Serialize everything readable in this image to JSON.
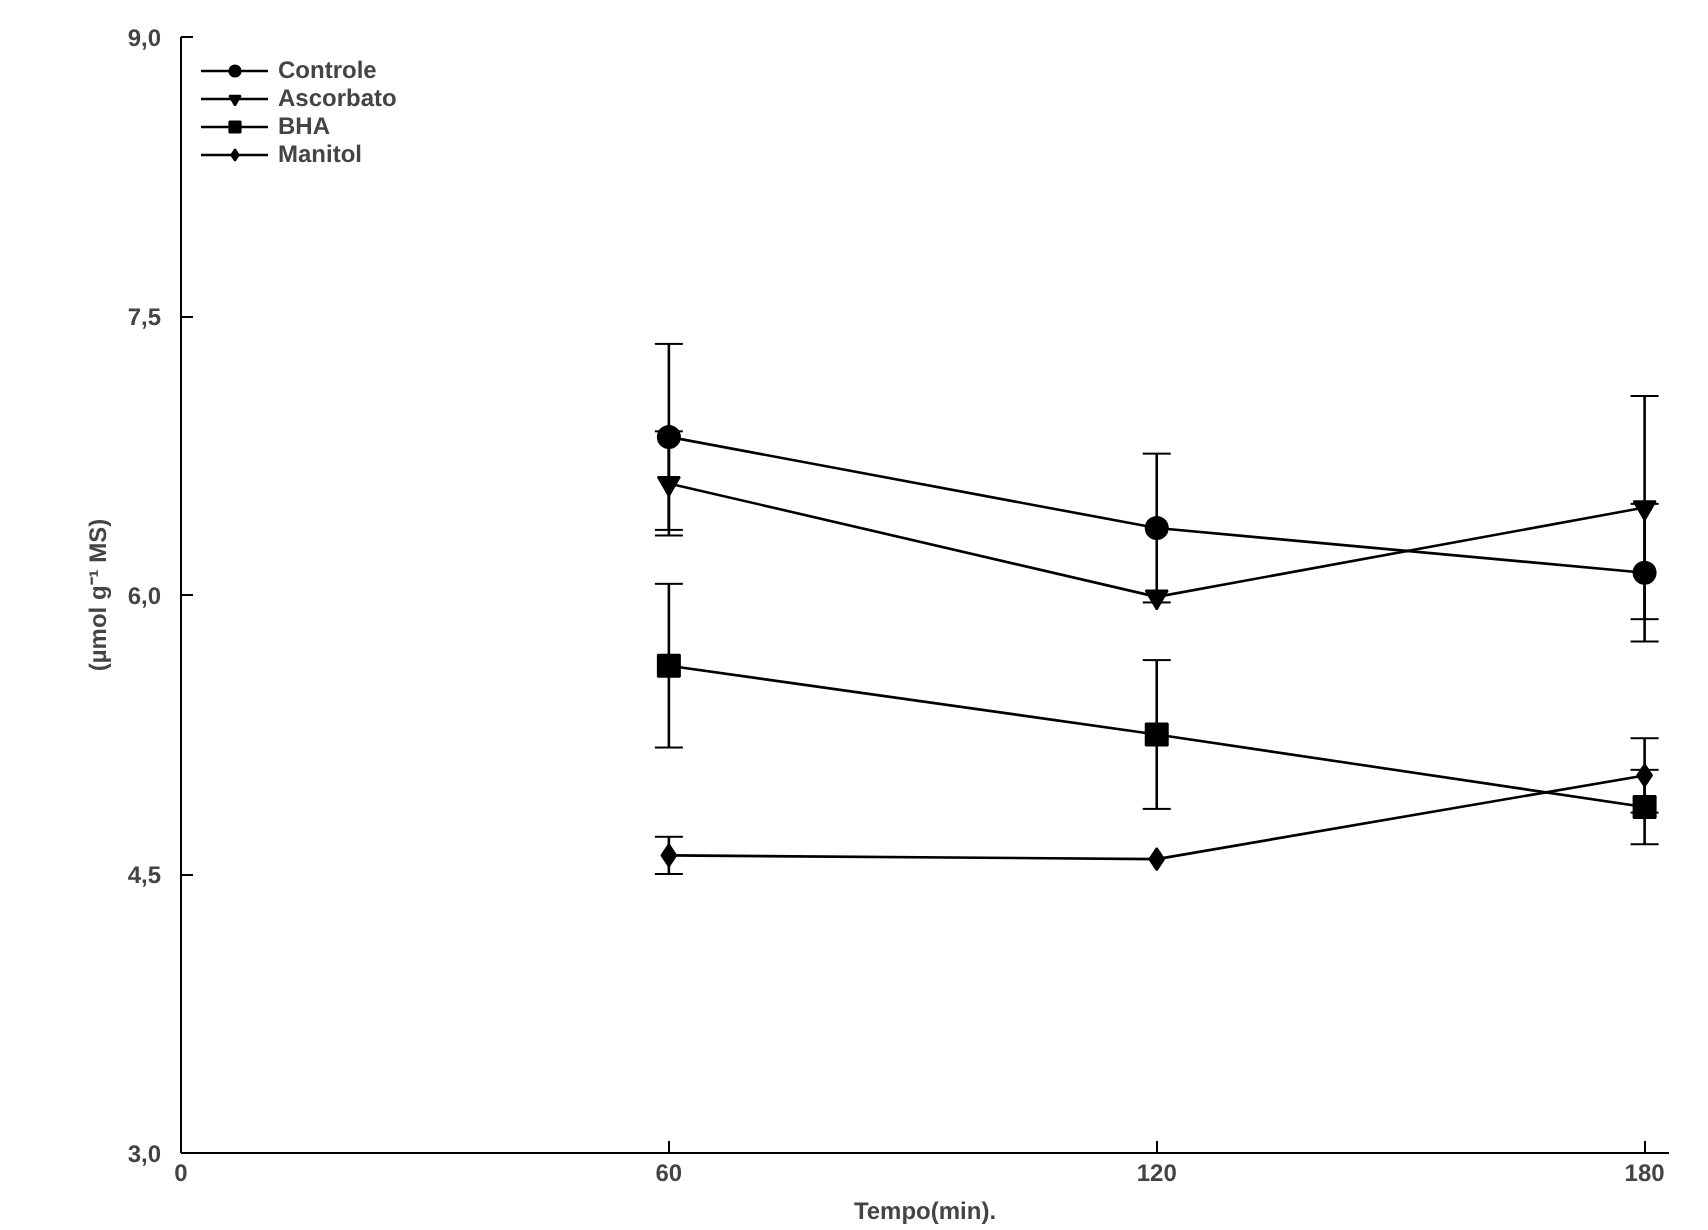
{
  "chart_data": {
    "type": "line",
    "xlabel": "Tempo(min).",
    "ylabel": "(µmol g⁻¹ MS)",
    "x": [
      60,
      120,
      180
    ],
    "series": [
      {
        "name": "Controle",
        "color": "#000000",
        "marker": "circle",
        "values": [
          6.85,
          6.36,
          6.12
        ],
        "errors": [
          0.5,
          0.4,
          0.37
        ]
      },
      {
        "name": "Ascorbato",
        "color": "#000000",
        "marker": "triangle",
        "values": [
          6.6,
          5.99,
          6.47
        ],
        "errors": [
          0.28,
          null,
          0.6
        ]
      },
      {
        "name": "BHA",
        "color": "#000000",
        "marker": "square",
        "values": [
          5.62,
          5.25,
          4.86
        ],
        "errors": [
          0.44,
          0.4,
          0.2
        ]
      },
      {
        "name": "Manitol",
        "color": "#000000",
        "marker": "diamond",
        "values": [
          4.6,
          4.58,
          5.03
        ],
        "errors": [
          0.1,
          null,
          0.2
        ]
      }
    ],
    "xlim": [
      0,
      183
    ],
    "ylim": [
      3,
      9
    ],
    "xticks": [
      0,
      60,
      120,
      180
    ],
    "yticks": [
      {
        "value": 3,
        "label": "3,0"
      },
      {
        "value": 4.5,
        "label": "4,5"
      },
      {
        "value": 6,
        "label": "6,0"
      },
      {
        "value": 7.5,
        "label": "7,5"
      },
      {
        "value": 9,
        "label": "9,0"
      }
    ],
    "grid": false,
    "legend": "top left",
    "line_style": "solid"
  }
}
